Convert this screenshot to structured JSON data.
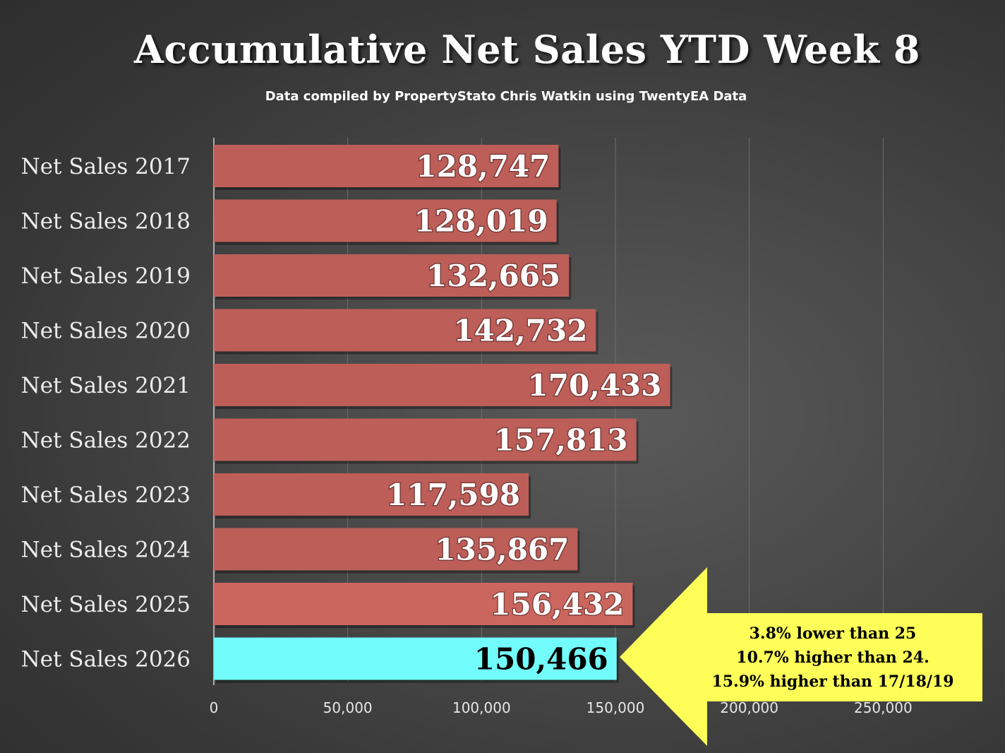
{
  "chart_data": {
    "type": "bar",
    "orientation": "horizontal",
    "title": "Accumulative Net Sales YTD Week 8",
    "subtitle": "Data compiled by PropertyStato Chris Watkin using TwentyEA Data",
    "categories": [
      "Net Sales 2017",
      "Net Sales 2018",
      "Net Sales 2019",
      "Net Sales 2020",
      "Net Sales 2021",
      "Net Sales 2022",
      "Net Sales 2023",
      "Net Sales 2024",
      "Net Sales 2025",
      "Net Sales 2026"
    ],
    "values": [
      128747,
      128019,
      132665,
      142732,
      170433,
      157813,
      117598,
      135867,
      156432,
      150466
    ],
    "value_labels": [
      "128,747",
      "128,019",
      "132,665",
      "142,732",
      "170,433",
      "157,813",
      "117,598",
      "135,867",
      "156,432",
      "150,466"
    ],
    "xlim": [
      0,
      300000
    ],
    "xticks": [
      0,
      50000,
      100000,
      150000,
      200000,
      250000
    ],
    "xtick_labels": [
      "0",
      "50,000",
      "100,000",
      "150,000",
      "200,000",
      "250,000"
    ],
    "grid": "vertical",
    "bar_colors": [
      "#bd5e59",
      "#bd5e59",
      "#bd5e59",
      "#bd5e59",
      "#bd5e59",
      "#bd5e59",
      "#bd5e59",
      "#bd5e59",
      "#cb665f",
      "#72fcfc"
    ],
    "label_colors": [
      "#ffffff",
      "#ffffff",
      "#ffffff",
      "#ffffff",
      "#ffffff",
      "#ffffff",
      "#ffffff",
      "#ffffff",
      "#ffffff",
      "#000000"
    ],
    "annotation": {
      "lines": [
        "3.8% lower than 25",
        "10.7% higher than 24.",
        "15.9% higher than 17/18/19"
      ],
      "shape": "left-pointing arrow",
      "color": "#fefe58"
    }
  }
}
